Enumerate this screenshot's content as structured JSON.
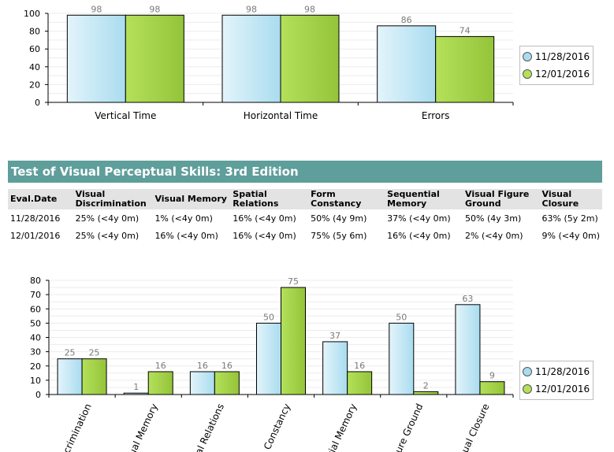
{
  "chart_top": {
    "legend": [
      "11/28/2016",
      "12/01/2016"
    ],
    "colors": [
      "#a9dcef",
      "#b4e05a"
    ],
    "chart_data": {
      "type": "bar",
      "categories": [
        "Vertical Time",
        "Horizontal Time",
        "Errors"
      ],
      "series": [
        {
          "name": "11/28/2016",
          "values": [
            98,
            98,
            86
          ]
        },
        {
          "name": "12/01/2016",
          "values": [
            98,
            98,
            74
          ]
        }
      ],
      "yticks": [
        0,
        20,
        40,
        60,
        80,
        100
      ],
      "ylim": [
        0,
        100
      ],
      "legend_position": "right"
    }
  },
  "section": {
    "title": "Test of Visual Perceptual Skills:  3rd Edition"
  },
  "table": {
    "headers": [
      "Eval.Date",
      "Visual Discrimination",
      "Visual Memory",
      "Spatial Relations",
      "Form Constancy",
      "Sequential Memory",
      "Visual Figure Ground",
      "Visual Closure"
    ],
    "rows": [
      [
        "11/28/2016",
        "25% (<4y 0m)",
        "1% (<4y 0m)",
        "16% (<4y 0m)",
        "50% (4y 9m)",
        "37% (<4y 0m)",
        "50% (4y 3m)",
        "63% (5y 2m)"
      ],
      [
        "12/01/2016",
        "25% (<4y 0m)",
        "16% (<4y 0m)",
        "16% (<4y 0m)",
        "75% (5y 6m)",
        "16% (<4y 0m)",
        "2% (<4y 0m)",
        "9% (<4y 0m)"
      ]
    ]
  },
  "chart_bottom": {
    "legend": [
      "11/28/2016",
      "12/01/2016"
    ],
    "colors": [
      "#a9dcef",
      "#b4e05a"
    ],
    "chart_data": {
      "type": "bar",
      "categories": [
        "Visual Discrimination",
        "Visual Memory",
        "Spatial Relations",
        "Form Constancy",
        "Sequential Memory",
        "Visual Figure Ground",
        "Visual Closure"
      ],
      "visible_category_text": [
        "crimination",
        "ual Memory",
        "al Relations",
        "Constancy",
        "tial Memory",
        "ure Ground",
        "ual Closure"
      ],
      "series": [
        {
          "name": "11/28/2016",
          "values": [
            25,
            1,
            16,
            50,
            37,
            50,
            63
          ]
        },
        {
          "name": "12/01/2016",
          "values": [
            25,
            16,
            16,
            75,
            16,
            2,
            9
          ]
        }
      ],
      "yticks": [
        0,
        10,
        20,
        30,
        40,
        50,
        60,
        70,
        80
      ],
      "ylim": [
        0,
        80
      ],
      "legend_position": "right"
    }
  }
}
